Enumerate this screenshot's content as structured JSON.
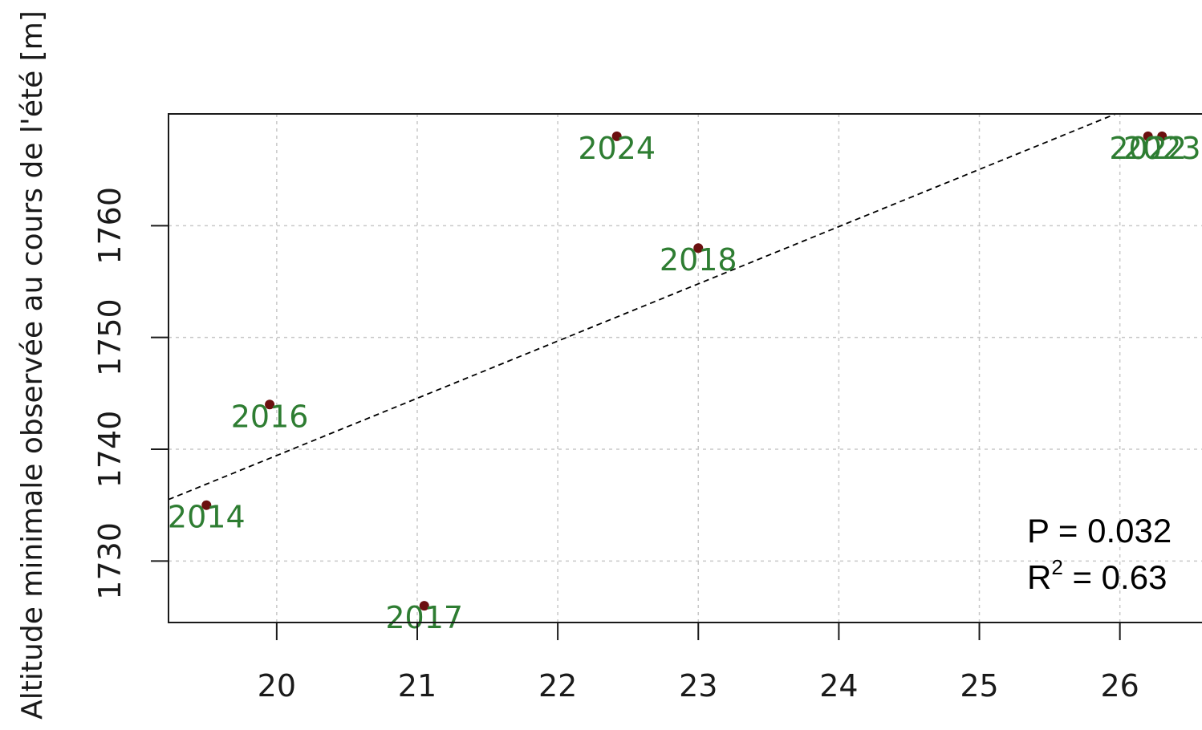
{
  "chart_data": {
    "type": "scatter",
    "ylabel": "Altitude minimale observée au cours de l'été [m]",
    "xlabel": "",
    "xlim": [
      19.23,
      26.63
    ],
    "ylim": [
      1724.5,
      1770.0
    ],
    "x_ticks": [
      "20",
      "21",
      "22",
      "23",
      "24",
      "25",
      "26"
    ],
    "y_ticks": [
      "1730",
      "1740",
      "1750",
      "1760"
    ],
    "grid": true,
    "points": [
      {
        "label": "2014",
        "x": 19.5,
        "y": 1735
      },
      {
        "label": "2016",
        "x": 19.95,
        "y": 1744
      },
      {
        "label": "2017",
        "x": 21.05,
        "y": 1726
      },
      {
        "label": "2018",
        "x": 23.0,
        "y": 1758
      },
      {
        "label": "2024",
        "x": 22.42,
        "y": 1768
      },
      {
        "label": "2022",
        "x": 26.2,
        "y": 1768
      },
      {
        "label": "2023",
        "x": 26.3,
        "y": 1768
      }
    ],
    "trendline": {
      "style": "dashed",
      "x1": 19.23,
      "y1": 1735.5,
      "x2": 25.97,
      "y2": 1770.0
    },
    "annotations": {
      "p_value": "P = 0.032",
      "r2_prefix": "R",
      "r2_sup": "2",
      "r2_value": " = 0.63"
    },
    "colors": {
      "point": "#6b0f0f",
      "label": "#2e7d32",
      "grid": "#c8c8c8",
      "axis": "#1a1a1a"
    }
  }
}
